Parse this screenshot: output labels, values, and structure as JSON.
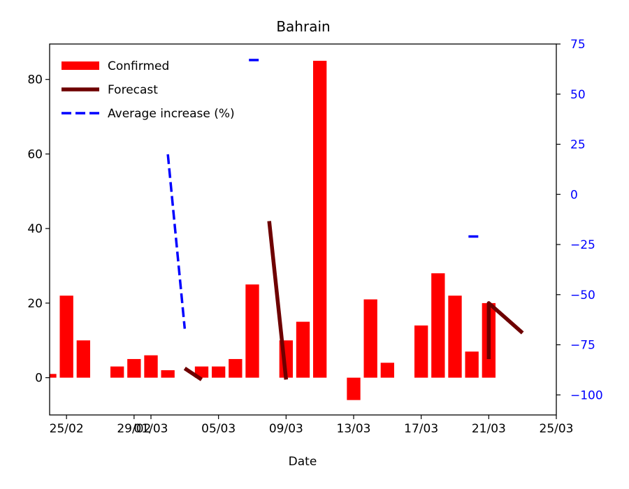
{
  "chart_data": {
    "type": "bar",
    "title": "Bahrain",
    "xlabel": "Date",
    "ylabel": "",
    "ylabel_right": "",
    "xlim": [
      "2020-02-24",
      "2020-03-25"
    ],
    "ylim": [
      -10,
      89.5
    ],
    "ylim_right": [
      -110,
      75
    ],
    "x_ticks": [
      {
        "date": "2020-02-25",
        "label": "25/02"
      },
      {
        "date": "2020-02-29",
        "label": "29/02"
      },
      {
        "date": "2020-03-01",
        "label": "01/03"
      },
      {
        "date": "2020-03-05",
        "label": "05/03"
      },
      {
        "date": "2020-03-09",
        "label": "09/03"
      },
      {
        "date": "2020-03-13",
        "label": "13/03"
      },
      {
        "date": "2020-03-17",
        "label": "17/03"
      },
      {
        "date": "2020-03-21",
        "label": "21/03"
      },
      {
        "date": "2020-03-25",
        "label": "25/03"
      }
    ],
    "y_ticks": [
      0,
      20,
      40,
      60,
      80
    ],
    "y_ticks_right": [
      75,
      50,
      25,
      0,
      -25,
      -50,
      -75,
      -100
    ],
    "grid": false,
    "legend_position": "top-left",
    "legend": [
      {
        "label": "Confirmed",
        "style": "bar",
        "color": "#ff0000"
      },
      {
        "label": "Forecast",
        "style": "line",
        "color": "#6e0000"
      },
      {
        "label": "Average increase (%)",
        "style": "dashed",
        "color": "#0000ff"
      }
    ],
    "series": [
      {
        "name": "Confirmed",
        "kind": "bar",
        "axis": "left",
        "color": "#ff0000",
        "points": [
          {
            "x": "2020-02-24",
            "y": 1
          },
          {
            "x": "2020-02-25",
            "y": 22
          },
          {
            "x": "2020-02-26",
            "y": 10
          },
          {
            "x": "2020-02-28",
            "y": 3
          },
          {
            "x": "2020-02-29",
            "y": 5
          },
          {
            "x": "2020-03-01",
            "y": 6
          },
          {
            "x": "2020-03-02",
            "y": 2
          },
          {
            "x": "2020-03-04",
            "y": 3
          },
          {
            "x": "2020-03-05",
            "y": 3
          },
          {
            "x": "2020-03-06",
            "y": 5
          },
          {
            "x": "2020-03-07",
            "y": 25
          },
          {
            "x": "2020-03-09",
            "y": 10
          },
          {
            "x": "2020-03-10",
            "y": 15
          },
          {
            "x": "2020-03-11",
            "y": 85
          },
          {
            "x": "2020-03-13",
            "y": -6
          },
          {
            "x": "2020-03-14",
            "y": 21
          },
          {
            "x": "2020-03-15",
            "y": 4
          },
          {
            "x": "2020-03-17",
            "y": 14
          },
          {
            "x": "2020-03-18",
            "y": 28
          },
          {
            "x": "2020-03-19",
            "y": 22
          },
          {
            "x": "2020-03-20",
            "y": 7
          },
          {
            "x": "2020-03-21",
            "y": 20
          }
        ]
      },
      {
        "name": "Forecast",
        "kind": "line",
        "axis": "left",
        "color": "#6e0000",
        "segments": [
          [
            {
              "x": "2020-03-03",
              "y": 2.5
            },
            {
              "x": "2020-03-04",
              "y": -0.5
            }
          ],
          [
            {
              "x": "2020-03-08",
              "y": 42
            },
            {
              "x": "2020-03-09",
              "y": -0.5
            }
          ],
          [
            {
              "x": "2020-03-21",
              "y": 5
            },
            {
              "x": "2020-03-21",
              "y": 20
            },
            {
              "x": "2020-03-22",
              "y": 16
            },
            {
              "x": "2020-03-23",
              "y": 12
            }
          ]
        ]
      },
      {
        "name": "Average increase (%)",
        "kind": "dashed",
        "axis": "right",
        "color": "#0000ff",
        "segments": [
          [
            {
              "x": "2020-03-02",
              "y": 20
            },
            {
              "x": "2020-03-03",
              "y": -67
            }
          ],
          [
            {
              "x": "2020-03-06.8",
              "y": 67
            },
            {
              "x": "2020-03-07.6",
              "y": 67
            }
          ],
          [
            {
              "x": "2020-03-19.8",
              "y": -21
            },
            {
              "x": "2020-03-20.6",
              "y": -21
            }
          ]
        ]
      }
    ]
  }
}
